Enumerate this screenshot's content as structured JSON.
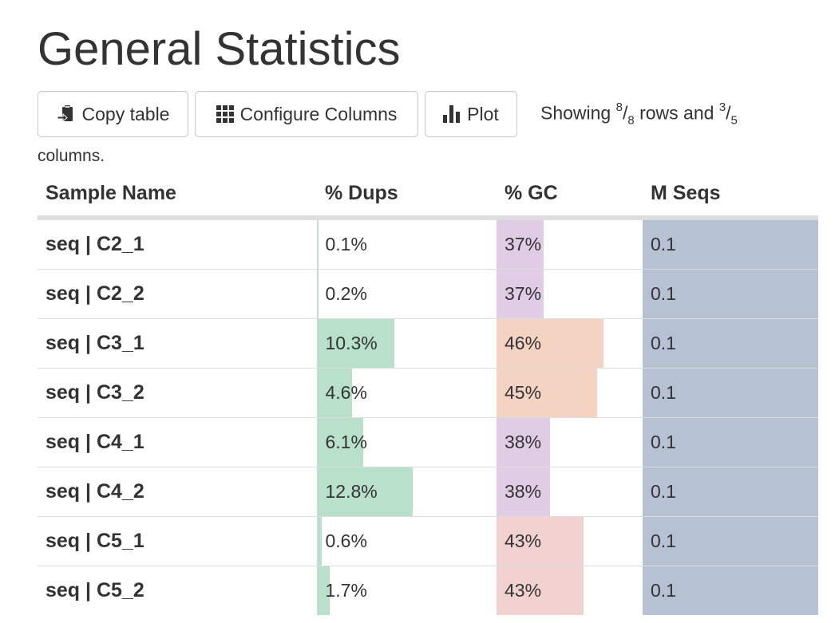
{
  "title": "General Statistics",
  "toolbar": {
    "copy_label": "Copy table",
    "configure_label": "Configure Columns",
    "plot_label": "Plot",
    "showing_prefix": "Showing ",
    "rows_shown": "8",
    "rows_total": "8",
    "rows_word": " rows and ",
    "cols_shown": "3",
    "cols_total": "5",
    "columns_word": "columns."
  },
  "table": {
    "headers": [
      "Sample Name",
      "% Dups",
      "% GC",
      "M Seqs"
    ],
    "colors": {
      "dups_bar": "#b8e0cb",
      "gc_purple": "#e0cce5",
      "gc_orange": "#f5d3c3",
      "gc_pink": "#f1d2d0",
      "seqs_bar": "#b6c1d3"
    },
    "rows": [
      {
        "sample": "seq | C2_1",
        "dups": "0.1%",
        "dups_value": 0.1,
        "gc": "37%",
        "gc_value": 37,
        "gc_color": "purple",
        "seqs": "0.1",
        "seqs_fraction": 1.0
      },
      {
        "sample": "seq | C2_2",
        "dups": "0.2%",
        "dups_value": 0.2,
        "gc": "37%",
        "gc_value": 37,
        "gc_color": "purple",
        "seqs": "0.1",
        "seqs_fraction": 1.0
      },
      {
        "sample": "seq | C3_1",
        "dups": "10.3%",
        "dups_value": 10.3,
        "gc": "46%",
        "gc_value": 46,
        "gc_color": "orange",
        "seqs": "0.1",
        "seqs_fraction": 1.0
      },
      {
        "sample": "seq | C3_2",
        "dups": "4.6%",
        "dups_value": 4.6,
        "gc": "45%",
        "gc_value": 45,
        "gc_color": "orange",
        "seqs": "0.1",
        "seqs_fraction": 1.0
      },
      {
        "sample": "seq | C4_1",
        "dups": "6.1%",
        "dups_value": 6.1,
        "gc": "38%",
        "gc_value": 38,
        "gc_color": "purple",
        "seqs": "0.1",
        "seqs_fraction": 1.0
      },
      {
        "sample": "seq | C4_2",
        "dups": "12.8%",
        "dups_value": 12.8,
        "gc": "38%",
        "gc_value": 38,
        "gc_color": "purple",
        "seqs": "0.1",
        "seqs_fraction": 1.0
      },
      {
        "sample": "seq | C5_1",
        "dups": "0.6%",
        "dups_value": 0.6,
        "gc": "43%",
        "gc_value": 43,
        "gc_color": "pink",
        "seqs": "0.1",
        "seqs_fraction": 1.0
      },
      {
        "sample": "seq | C5_2",
        "dups": "1.7%",
        "dups_value": 1.7,
        "gc": "43%",
        "gc_value": 43,
        "gc_color": "pink",
        "seqs": "0.1",
        "seqs_fraction": 1.0
      }
    ]
  }
}
